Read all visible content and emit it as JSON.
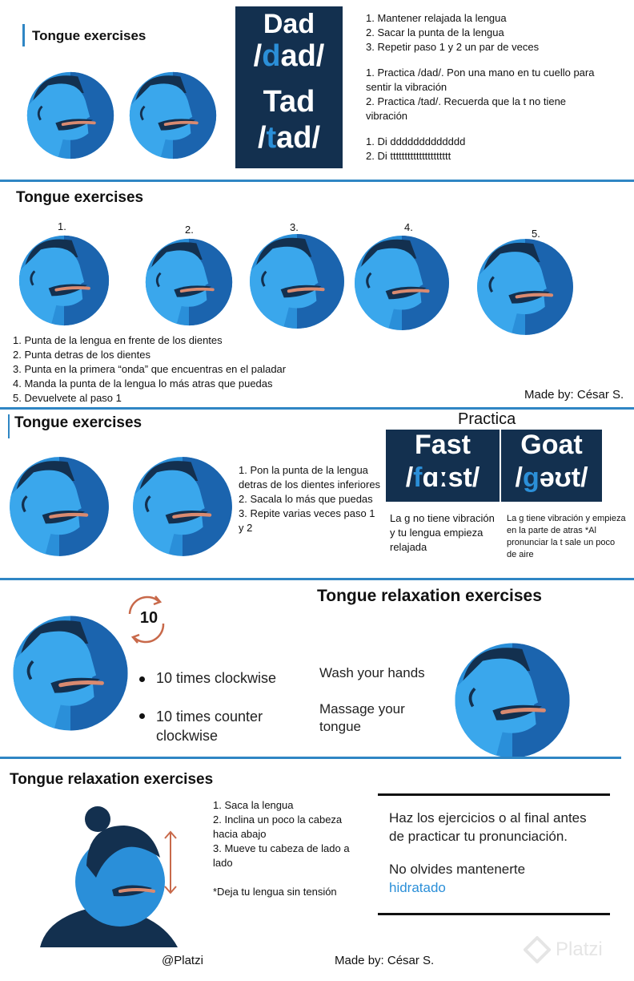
{
  "section1": {
    "title": "Tongue exercises",
    "card": {
      "word1": "Dad",
      "ipa1_pre": "/",
      "ipa1_hl": "d",
      "ipa1_post": "ad/",
      "word2": "Tad",
      "ipa2_pre": "/",
      "ipa2_hl": "t",
      "ipa2_post": "ad/"
    },
    "list_a": [
      "1. Mantener relajada la lengua",
      "2. Sacar la punta de la lengua",
      "3. Repetir paso 1 y 2 un par de veces"
    ],
    "list_b": [
      "1. Practica /dad/. Pon una mano en tu cuello para sentir la vibración",
      "2. Practica /tad/. Recuerda que la t no tiene vibración"
    ],
    "list_c": [
      "1. Di ddddddddddddd",
      "2. Di ttttttttttttttttttttt"
    ]
  },
  "section2": {
    "title": "Tongue exercises",
    "numbers": [
      "1.",
      "2.",
      "3.",
      "4.",
      "5."
    ],
    "steps": [
      "1. Punta de la lengua en frente de los dientes",
      "2. Punta detras de los dientes",
      "3. Punta en la primera “onda” que encuentras en el paladar",
      "4. Manda la punta de la lengua lo más atras que puedas",
      "5. Devuelvete al paso 1"
    ],
    "credit": "Made by: César S."
  },
  "section3": {
    "title": "Tongue exercises",
    "steps": [
      "1. Pon la punta de la lengua detras de los dientes inferiores",
      "2. Sacala lo más que puedas",
      "3. Repite varias veces paso 1 y 2"
    ],
    "practice_label": "Practica",
    "card1": {
      "word": "Fast",
      "ipa_pre": "/",
      "ipa_hl": "f",
      "ipa_post": "ɑːst/"
    },
    "card2": {
      "word": "Goat",
      "ipa_pre": "/",
      "ipa_hl": "g",
      "ipa_post": "əʊt/"
    },
    "note1": "La g no tiene vibración y tu lengua empieza relajada",
    "note2": "La g tiene vibración y empieza en la parte de atras *Al pronunciar la t sale un poco de aire"
  },
  "section4": {
    "title": "Tongue relaxation exercises",
    "counter": "10",
    "bullet1": "10 times clockwise",
    "bullet2": "10 times counter clockwise",
    "text1": "Wash your hands",
    "text2": "Massage your tongue"
  },
  "section5": {
    "title": "Tongue relaxation exercises",
    "steps": [
      "1. Saca la lengua",
      "2. Inclina un poco la cabeza hacia abajo",
      "3. Mueve tu cabeza de lado a lado"
    ],
    "note": "*Deja tu lengua sin tensión",
    "box_text1": "Haz los ejercicios o al final antes de practicar tu pronunciación.",
    "box_text2_a": "No olvides mantenerte",
    "box_text2_b": "hidratado",
    "footer_left": "@Platzi",
    "footer_center": "Made by: César S.",
    "watermark": "Platzi"
  },
  "colors": {
    "accent": "#2f86c4",
    "dark_card": "#13304f",
    "face_light": "#3aa0e6",
    "face_dark": "#1a5fa8",
    "hair": "#13304f",
    "tongue": "#d98a70"
  }
}
